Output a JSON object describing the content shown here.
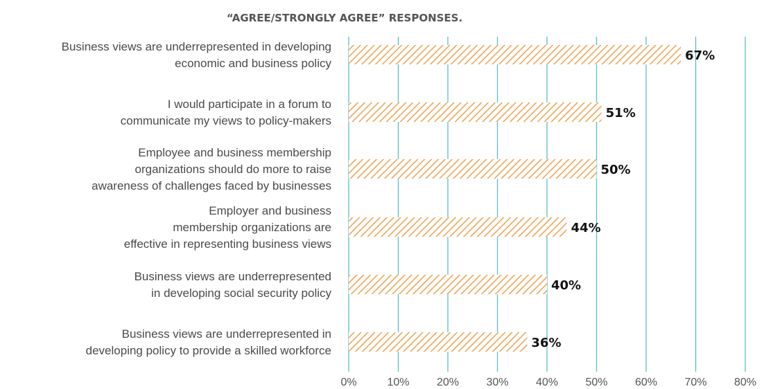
{
  "chart_data": {
    "type": "bar",
    "orientation": "horizontal",
    "title": "“AGREE/STRONGLY AGREE” RESPONSES.",
    "categories": [
      [
        "Business views are underrepresented in developing",
        "economic and business policy"
      ],
      [
        "I would participate in a forum to",
        "communicate my views to policy-makers"
      ],
      [
        "Employee and business membership",
        "organizations should do more to raise",
        "awareness of challenges faced by businesses"
      ],
      [
        "Employer and business",
        "membership organizations are",
        "effective in representing business views"
      ],
      [
        "Business views are underrepresented",
        "in developing social security policy"
      ],
      [
        "Business views are underrepresented in",
        "developing policy to provide a skilled workforce"
      ]
    ],
    "values": [
      67,
      51,
      50,
      44,
      40,
      36
    ],
    "value_labels": [
      "67%",
      "51%",
      "50%",
      "44%",
      "40%",
      "36%"
    ],
    "xlim": [
      0,
      80
    ],
    "xticks": [
      "0%",
      "10%",
      "20%",
      "30%",
      "40%",
      "50%",
      "60%",
      "70%",
      "80%"
    ],
    "grid": "vertical",
    "colors": {
      "bar_stripe": "#f0a04b",
      "grid": "#5bbcc9"
    }
  }
}
